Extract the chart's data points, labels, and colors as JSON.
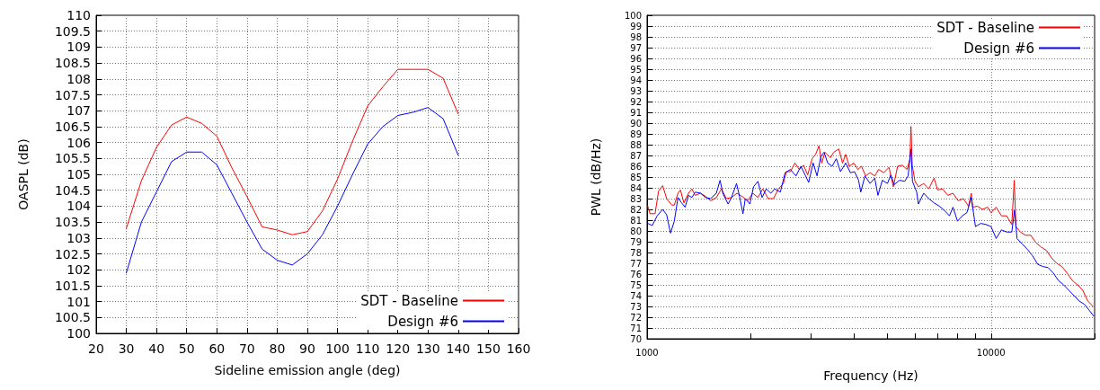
{
  "chart_data": [
    {
      "type": "line",
      "xlabel": "Sideline emission angle (deg)",
      "ylabel": "OASPL (dB)",
      "x": [
        30,
        35,
        40,
        45,
        50,
        55,
        60,
        65,
        70,
        75,
        80,
        85,
        90,
        95,
        100,
        105,
        110,
        115,
        120,
        125,
        130,
        135,
        140
      ],
      "series": [
        {
          "name": "SDT - Baseline",
          "color": "#ff0000",
          "values": [
            103.3,
            104.8,
            105.85,
            106.55,
            106.8,
            106.6,
            106.2,
            105.2,
            104.3,
            103.35,
            103.25,
            103.1,
            103.2,
            103.85,
            104.85,
            106.05,
            107.15,
            107.75,
            108.3,
            108.3,
            108.3,
            108.02,
            106.9
          ]
        },
        {
          "name": "Design #6",
          "color": "#0000ff",
          "values": [
            101.9,
            103.5,
            104.45,
            105.4,
            105.7,
            105.7,
            105.3,
            104.4,
            103.5,
            102.65,
            102.3,
            102.15,
            102.5,
            103.1,
            104.0,
            105.0,
            105.95,
            106.5,
            106.85,
            106.95,
            107.1,
            106.75,
            105.6
          ]
        }
      ],
      "xlim": [
        20,
        160
      ],
      "xticks": [
        20,
        30,
        40,
        50,
        60,
        70,
        80,
        90,
        100,
        110,
        120,
        130,
        140,
        150,
        160
      ],
      "ylim": [
        100,
        110
      ],
      "yticks": [
        100,
        100.5,
        101,
        101.5,
        102,
        102.5,
        103,
        103.5,
        104,
        104.5,
        105,
        105.5,
        106,
        106.5,
        107,
        107.5,
        108,
        108.5,
        109,
        109.5,
        110
      ],
      "grid": true,
      "legend": "bottom right",
      "marker": "none"
    },
    {
      "type": "line",
      "xlabel": "Frequency (Hz)",
      "ylabel": "PWL (dB/Hz)",
      "series": [
        {
          "name": "SDT - Baseline",
          "color": "#ff0000",
          "x": [
            1005,
            1020,
            1055,
            1080,
            1110,
            1140,
            1180,
            1200,
            1230,
            1250,
            1280,
            1320,
            1350,
            1380,
            1430,
            1480,
            1530,
            1590,
            1645,
            1700,
            1760,
            1825,
            1890,
            1960,
            2030,
            2100,
            2170,
            2250,
            2330,
            2410,
            2490,
            2540,
            2610,
            2690,
            2770,
            2850,
            2930,
            3020,
            3090,
            3160,
            3220,
            3290,
            3410,
            3490,
            3610,
            3700,
            3780,
            3870,
            3990,
            4100,
            4200,
            4320,
            4450,
            4590,
            4710,
            4880,
            5050,
            5200,
            5350,
            5520,
            5700,
            5810,
            5850,
            5900,
            6010,
            6150,
            6370,
            6590,
            6830,
            6990,
            7230,
            7490,
            7750,
            8020,
            8310,
            8600,
            8760,
            8840,
            9120,
            9440,
            9770,
            10000,
            10350,
            10720,
            11100,
            11490,
            11680,
            11810,
            12170,
            12600,
            13050,
            13510,
            13990,
            14480,
            14990,
            15520,
            16070,
            16640,
            17230,
            17840,
            18470,
            19110,
            19800
          ],
          "values": [
            82.3,
            81.6,
            81.6,
            83.7,
            84.2,
            83.0,
            82.4,
            82.4,
            83.5,
            83.8,
            82.6,
            83.5,
            83.9,
            83.3,
            83.5,
            83.2,
            82.8,
            83.1,
            83.9,
            83.0,
            83.1,
            83.5,
            83.2,
            82.8,
            83.5,
            83.1,
            83.9,
            83.0,
            83.0,
            83.9,
            84.4,
            85.5,
            85.5,
            86.3,
            85.7,
            86.1,
            85.2,
            86.7,
            87.1,
            87.9,
            86.3,
            87.3,
            86.8,
            87.3,
            87.6,
            86.3,
            87.1,
            86.0,
            86.3,
            85.7,
            86.0,
            85.1,
            85.4,
            85.1,
            85.7,
            85.4,
            85.9,
            84.1,
            86.0,
            86.1,
            85.7,
            86.7,
            89.7,
            86.1,
            84.6,
            84.1,
            84.4,
            83.9,
            84.9,
            83.8,
            83.9,
            83.3,
            83.5,
            82.8,
            83.0,
            82.3,
            83.5,
            82.2,
            82.3,
            82.0,
            82.2,
            81.7,
            82.2,
            81.4,
            81.4,
            80.6,
            84.7,
            80.4,
            79.9,
            79.6,
            79.6,
            78.9,
            78.5,
            78.2,
            77.5,
            77.0,
            76.7,
            76.1,
            75.4,
            75.0,
            74.5,
            73.5,
            73.0
          ]
        },
        {
          "name": "Design #6",
          "color": "#0000ff",
          "x": [
            1005,
            1035,
            1070,
            1110,
            1140,
            1170,
            1200,
            1230,
            1260,
            1290,
            1320,
            1350,
            1380,
            1430,
            1480,
            1530,
            1590,
            1630,
            1660,
            1720,
            1760,
            1820,
            1860,
            1900,
            1930,
            1990,
            2040,
            2100,
            2160,
            2220,
            2290,
            2350,
            2440,
            2520,
            2610,
            2710,
            2800,
            2890,
            2950,
            3040,
            3120,
            3200,
            3270,
            3350,
            3450,
            3550,
            3650,
            3780,
            3900,
            4010,
            4120,
            4180,
            4300,
            4450,
            4590,
            4690,
            4830,
            5000,
            5110,
            5230,
            5420,
            5610,
            5740,
            5850,
            5910,
            6080,
            6150,
            6370,
            6590,
            6830,
            7070,
            7320,
            7570,
            7750,
            7990,
            8250,
            8510,
            8760,
            9010,
            9330,
            9660,
            10000,
            10350,
            10720,
            11100,
            11490,
            11700,
            11900,
            12310,
            12750,
            13200,
            13670,
            14150,
            14650,
            15170,
            15700,
            16260,
            16830,
            17430,
            18040,
            18680,
            19340,
            19890
          ],
          "values": [
            80.7,
            80.5,
            81.4,
            82.0,
            81.5,
            79.8,
            80.9,
            83.1,
            82.6,
            82.2,
            83.3,
            83.1,
            83.6,
            83.5,
            83.1,
            83.0,
            83.5,
            84.7,
            83.5,
            82.5,
            83.1,
            84.4,
            83.1,
            81.6,
            83.0,
            82.5,
            84.1,
            84.6,
            83.1,
            83.9,
            83.5,
            83.9,
            83.6,
            85.4,
            85.7,
            85.1,
            86.0,
            85.1,
            84.5,
            86.3,
            85.1,
            86.9,
            87.3,
            86.3,
            86.0,
            86.7,
            85.5,
            86.3,
            85.4,
            85.5,
            84.7,
            83.6,
            85.1,
            84.4,
            84.9,
            83.3,
            84.7,
            84.4,
            85.2,
            84.3,
            84.7,
            84.6,
            85.1,
            87.6,
            84.6,
            83.6,
            82.5,
            83.5,
            83.0,
            82.6,
            82.3,
            81.9,
            81.4,
            82.2,
            80.9,
            81.4,
            81.7,
            83.1,
            80.4,
            80.7,
            80.6,
            80.4,
            79.3,
            80.1,
            79.9,
            79.9,
            81.9,
            79.3,
            78.8,
            78.3,
            77.7,
            76.9,
            76.7,
            76.6,
            76.1,
            75.4,
            75.0,
            74.5,
            74.0,
            73.5,
            73.2,
            72.6,
            72.1
          ]
        }
      ],
      "xlim": [
        1000,
        20000
      ],
      "log": "x",
      "xticks": [
        1000,
        {
          "value": 2000,
          "label": null
        },
        {
          "value": 3000,
          "label": null
        },
        {
          "value": 4000,
          "label": null
        },
        {
          "value": 5000,
          "label": null
        },
        {
          "value": 6000,
          "label": null
        },
        {
          "value": 7000,
          "label": null
        },
        {
          "value": 8000,
          "label": null
        },
        {
          "value": 9000,
          "label": null
        },
        10000,
        {
          "value": 20000,
          "label": null
        }
      ],
      "ylim": [
        70,
        100
      ],
      "yticks": [
        70,
        71,
        72,
        73,
        74,
        75,
        76,
        77,
        78,
        79,
        80,
        81,
        82,
        83,
        84,
        85,
        86,
        87,
        88,
        89,
        90,
        91,
        92,
        93,
        94,
        95,
        96,
        97,
        98,
        99,
        100
      ],
      "grid": true,
      "legend": "top right",
      "marker": "none"
    }
  ]
}
